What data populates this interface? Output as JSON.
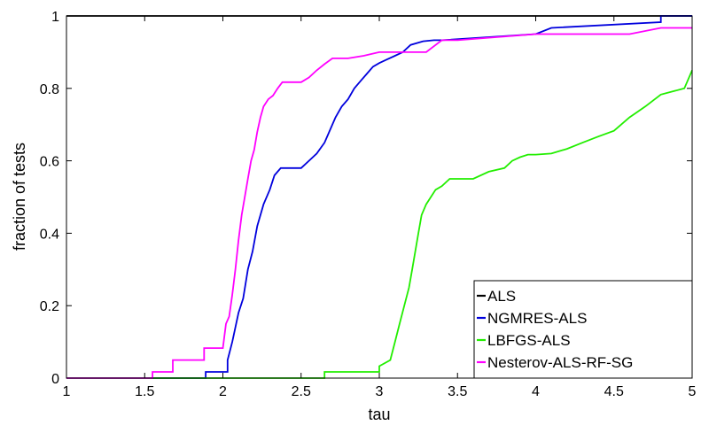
{
  "chart_data": {
    "type": "line",
    "title": "",
    "xlabel": "tau",
    "ylabel": "fraction of tests",
    "xlim": [
      1,
      5
    ],
    "ylim": [
      0,
      1
    ],
    "x_ticks": [
      "1",
      "1.5",
      "2",
      "2.5",
      "3",
      "3.5",
      "4",
      "4.5",
      "5"
    ],
    "y_ticks": [
      "0",
      "0.2",
      "0.4",
      "0.6",
      "0.8",
      "1"
    ],
    "grid": false,
    "legend_position": "bottom-right",
    "series": [
      {
        "name": "ALS",
        "color": "#000000",
        "x": [
          1.0,
          5.0
        ],
        "y": [
          1.0,
          1.0
        ]
      },
      {
        "name": "NGMRES-ALS",
        "color": "#0000dd",
        "x": [
          1.0,
          1.89,
          1.89,
          2.03,
          2.03,
          2.06,
          2.1,
          2.13,
          2.16,
          2.19,
          2.22,
          2.26,
          2.3,
          2.33,
          2.37,
          2.41,
          2.45,
          2.5,
          2.55,
          2.6,
          2.65,
          2.68,
          2.72,
          2.76,
          2.8,
          2.84,
          2.88,
          2.92,
          2.96,
          3.0,
          3.05,
          3.1,
          3.15,
          3.2,
          3.28,
          3.35,
          3.4,
          4.0,
          4.1,
          4.8,
          4.8,
          5.0
        ],
        "y": [
          0.0,
          0.0,
          0.017,
          0.017,
          0.05,
          0.1,
          0.18,
          0.22,
          0.3,
          0.35,
          0.42,
          0.48,
          0.52,
          0.56,
          0.58,
          0.58,
          0.58,
          0.58,
          0.6,
          0.62,
          0.65,
          0.68,
          0.72,
          0.75,
          0.77,
          0.8,
          0.82,
          0.84,
          0.86,
          0.87,
          0.88,
          0.89,
          0.9,
          0.92,
          0.93,
          0.933,
          0.933,
          0.95,
          0.967,
          0.983,
          1.0,
          1.0
        ]
      },
      {
        "name": "LBFGS-ALS",
        "color": "#22ee00",
        "x": [
          1.0,
          2.65,
          2.65,
          3.0,
          3.0,
          3.07,
          3.1,
          3.13,
          3.16,
          3.19,
          3.21,
          3.23,
          3.25,
          3.27,
          3.3,
          3.33,
          3.36,
          3.4,
          3.45,
          3.5,
          3.6,
          3.7,
          3.8,
          3.85,
          3.9,
          3.95,
          4.0,
          4.1,
          4.2,
          4.3,
          4.4,
          4.5,
          4.6,
          4.7,
          4.8,
          4.95,
          5.0
        ],
        "y": [
          0.0,
          0.0,
          0.017,
          0.017,
          0.033,
          0.05,
          0.1,
          0.15,
          0.2,
          0.25,
          0.3,
          0.35,
          0.4,
          0.45,
          0.48,
          0.5,
          0.52,
          0.53,
          0.55,
          0.55,
          0.55,
          0.57,
          0.58,
          0.6,
          0.61,
          0.617,
          0.617,
          0.62,
          0.633,
          0.65,
          0.667,
          0.683,
          0.72,
          0.75,
          0.783,
          0.8,
          0.85
        ]
      },
      {
        "name": "Nesterov-ALS-RF-SG",
        "color": "#ff00ff",
        "x": [
          1.0,
          1.55,
          1.55,
          1.68,
          1.68,
          1.88,
          1.88,
          2.0,
          2.02,
          2.04,
          2.06,
          2.08,
          2.1,
          2.12,
          2.14,
          2.16,
          2.18,
          2.2,
          2.22,
          2.24,
          2.26,
          2.29,
          2.32,
          2.35,
          2.38,
          2.42,
          2.5,
          2.55,
          2.6,
          2.65,
          2.7,
          2.8,
          2.9,
          3.0,
          3.1,
          3.2,
          3.3,
          3.4,
          3.5,
          4.0,
          4.6,
          4.8,
          5.0
        ],
        "y": [
          0.0,
          0.0,
          0.017,
          0.017,
          0.05,
          0.05,
          0.083,
          0.083,
          0.15,
          0.17,
          0.23,
          0.3,
          0.38,
          0.45,
          0.5,
          0.55,
          0.6,
          0.63,
          0.68,
          0.72,
          0.75,
          0.77,
          0.78,
          0.8,
          0.817,
          0.817,
          0.817,
          0.83,
          0.85,
          0.867,
          0.883,
          0.883,
          0.89,
          0.9,
          0.9,
          0.9,
          0.9,
          0.933,
          0.933,
          0.95,
          0.95,
          0.967,
          0.967
        ]
      }
    ]
  }
}
